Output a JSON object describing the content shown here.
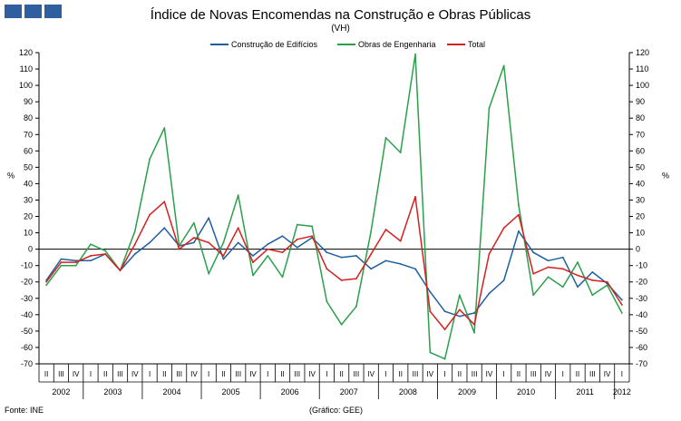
{
  "title": "Índice de Novas Encomendas na Construção e Obras Públicas",
  "subtitle": "(VH)",
  "source": "Fonte: INE",
  "credit": "(Gráfico: GEE)",
  "chart_data": {
    "type": "line",
    "ylabel": "%",
    "ylabel_right": "%",
    "ylim": [
      -70,
      120
    ],
    "yticks": [
      -70,
      -60,
      -50,
      -40,
      -30,
      -20,
      -10,
      0,
      10,
      20,
      30,
      40,
      50,
      60,
      70,
      80,
      90,
      100,
      110,
      120
    ],
    "quarter_labels": [
      "II",
      "III",
      "IV",
      "I",
      "II",
      "III",
      "IV",
      "I",
      "II",
      "III",
      "IV",
      "I",
      "II",
      "III",
      "IV",
      "I",
      "II",
      "III",
      "IV",
      "I",
      "II",
      "III",
      "IV",
      "I",
      "II",
      "III",
      "IV",
      "I",
      "II",
      "III",
      "IV",
      "I",
      "II",
      "III",
      "IV",
      "I",
      "II",
      "III",
      "IV",
      "I"
    ],
    "years": [
      {
        "label": "2002",
        "start": 0,
        "end": 3
      },
      {
        "label": "2003",
        "start": 3,
        "end": 7
      },
      {
        "label": "2004",
        "start": 7,
        "end": 11
      },
      {
        "label": "2005",
        "start": 11,
        "end": 15
      },
      {
        "label": "2006",
        "start": 15,
        "end": 19
      },
      {
        "label": "2007",
        "start": 19,
        "end": 23
      },
      {
        "label": "2008",
        "start": 23,
        "end": 27
      },
      {
        "label": "2009",
        "start": 27,
        "end": 31
      },
      {
        "label": "2010",
        "start": 31,
        "end": 35
      },
      {
        "label": "2011",
        "start": 35,
        "end": 39
      },
      {
        "label": "2012",
        "start": 39,
        "end": 40
      }
    ],
    "legend_position": "top-center",
    "series": [
      {
        "name": "Construção de Edifícios",
        "color": "#1f5fa0",
        "values": [
          -19,
          -6,
          -7,
          -7,
          -3,
          -13,
          -3,
          4,
          13,
          2,
          4,
          19,
          -6,
          4,
          -4,
          3,
          8,
          1,
          7,
          -2,
          -5,
          -4,
          -12,
          -7,
          -9,
          -12,
          -26,
          -38,
          -41,
          -39,
          -27,
          -19,
          11,
          -2,
          -7,
          -5,
          -23,
          -14,
          -21,
          -31
        ]
      },
      {
        "name": "Obras de Engenharia",
        "color": "#2aa04a",
        "values": [
          -22,
          -10,
          -10,
          3,
          -1,
          -13,
          11,
          55,
          74,
          2,
          16,
          -15,
          4,
          33,
          -16,
          -4,
          -17,
          15,
          14,
          -32,
          -46,
          -35,
          11,
          68,
          59,
          119,
          -63,
          -67,
          -28,
          -51,
          86,
          112,
          27,
          -28,
          -17,
          -23,
          -8,
          -28,
          -22,
          -39
        ]
      },
      {
        "name": "Total",
        "color": "#d42020",
        "values": [
          -20,
          -8,
          -8,
          -4,
          -3,
          -13,
          3,
          21,
          29,
          0,
          7,
          4,
          -4,
          13,
          -8,
          0,
          -2,
          6,
          8,
          -12,
          -19,
          -18,
          -3,
          12,
          5,
          32,
          -38,
          -49,
          -37,
          -46,
          -3,
          13,
          21,
          -15,
          -11,
          -12,
          -16,
          -19,
          -20,
          -34
        ]
      }
    ]
  }
}
